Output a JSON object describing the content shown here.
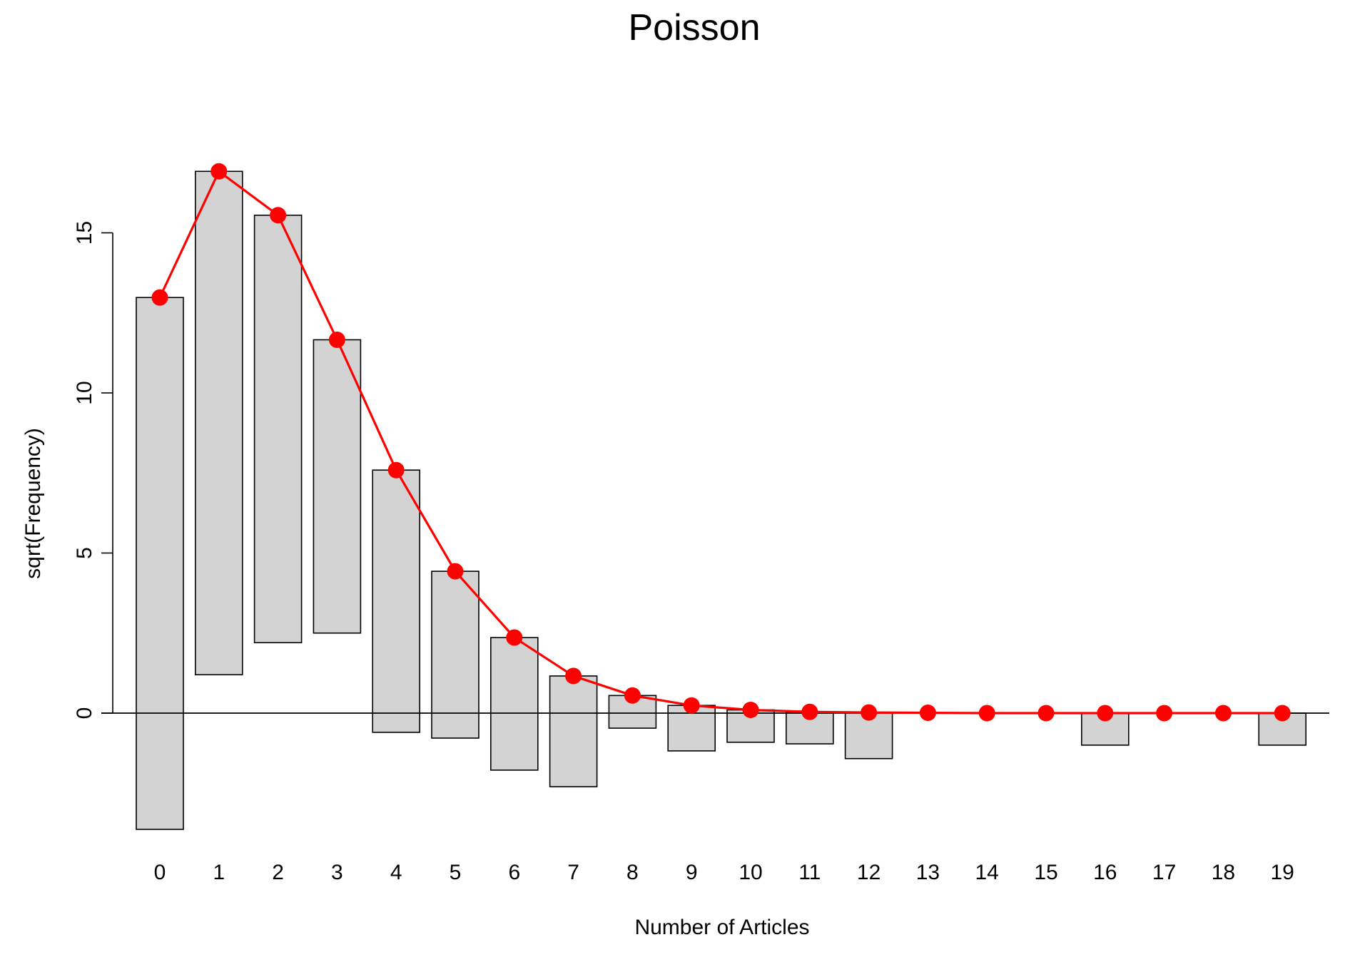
{
  "chart_data": {
    "type": "bar",
    "title": "Poisson",
    "xlabel": "Number of Articles",
    "ylabel": "sqrt(Frequency)",
    "categories": [
      "0",
      "1",
      "2",
      "3",
      "4",
      "5",
      "6",
      "7",
      "8",
      "9",
      "10",
      "11",
      "12",
      "13",
      "14",
      "15",
      "16",
      "17",
      "18",
      "19"
    ],
    "bars": {
      "top": [
        12.98,
        16.92,
        15.55,
        11.66,
        7.59,
        4.43,
        2.36,
        1.16,
        0.55,
        0.24,
        0.1,
        0.04,
        0.02,
        0.0,
        0.0,
        0.0,
        0.0,
        0.0,
        0.0,
        0.0
      ],
      "bottom": [
        -3.63,
        1.2,
        2.2,
        2.5,
        -0.6,
        -0.78,
        -1.78,
        -2.3,
        -0.47,
        -1.18,
        -0.91,
        -0.96,
        -1.42,
        0.0,
        0.0,
        0.0,
        -1.0,
        0.0,
        0.0,
        -1.0
      ]
    },
    "fitted_line": [
      12.98,
      16.92,
      15.55,
      11.66,
      7.59,
      4.43,
      2.36,
      1.16,
      0.55,
      0.24,
      0.1,
      0.04,
      0.02,
      0.01,
      0.0,
      0.0,
      0.0,
      0.0,
      0.0,
      0.0
    ],
    "yticks": [
      0,
      5,
      10,
      15
    ],
    "ylim": [
      -4.1,
      18.5
    ],
    "reference_line_y": 0,
    "grid": false,
    "colors": {
      "bar_fill": "#d3d3d3",
      "bar_stroke": "#000000",
      "line": "#ff0000",
      "points": "#ff0000"
    }
  }
}
